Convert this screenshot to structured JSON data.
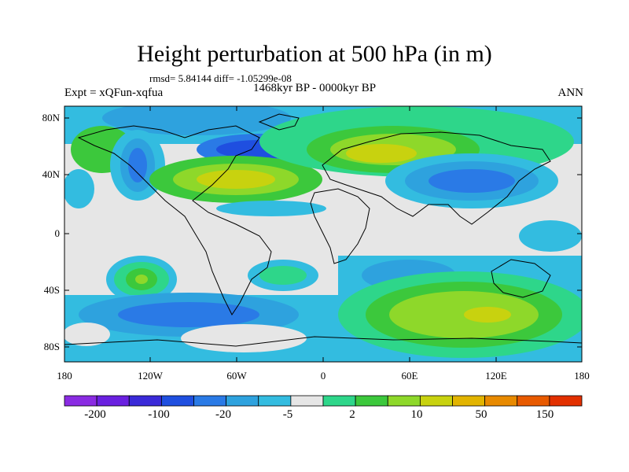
{
  "title": "Height perturbation at 500 hPa (in m)",
  "stats": "rmsd= 5.84144 diff= -1.05299e-08",
  "experiment": "Expt = xQFun-xqfua",
  "period": "1468kyr BP - 0000kyr BP",
  "season": "ANN",
  "lat_labels": [
    "80N",
    "40N",
    "0",
    "40S",
    "80S"
  ],
  "lon_labels": [
    "180",
    "120W",
    "60W",
    "0",
    "60E",
    "120E",
    "180"
  ],
  "colorbar": {
    "labels": [
      "-200",
      "-100",
      "-20",
      "-5",
      "2",
      "10",
      "50",
      "150"
    ],
    "colors": [
      "#8a2be2",
      "#6a20e0",
      "#3a2ad8",
      "#1f4fe0",
      "#2a7ae6",
      "#2ea2de",
      "#33bce0",
      "#e6e6e6",
      "#2ed68a",
      "#3cc83c",
      "#8ed82a",
      "#c8d20f",
      "#e2b400",
      "#e88a00",
      "#e85a00",
      "#e23000"
    ]
  }
}
